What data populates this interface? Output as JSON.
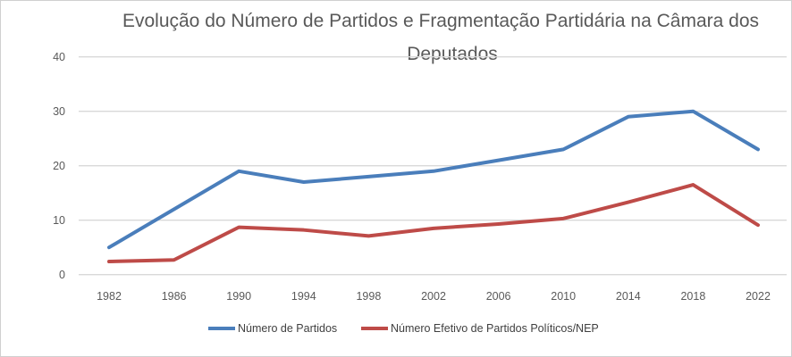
{
  "chart_data": {
    "type": "line",
    "title_lines": [
      "Evolução do Número de Partidos e Fragmentação Partidária na Câmara dos",
      "Deputados"
    ],
    "categories": [
      "1982",
      "1986",
      "1990",
      "1994",
      "1998",
      "2002",
      "2006",
      "2010",
      "2014",
      "2018",
      "2022"
    ],
    "series": [
      {
        "name": "Número de Partidos",
        "color": "#4a7ebb",
        "values": [
          5,
          12,
          19,
          17,
          18,
          19,
          21,
          23,
          29,
          30,
          23
        ]
      },
      {
        "name": "Número Efetivo de Partidos Políticos/NEP",
        "color": "#be4b48",
        "values": [
          2.4,
          2.7,
          8.7,
          8.2,
          7.1,
          8.5,
          9.3,
          10.3,
          13.3,
          16.5,
          9.1
        ]
      }
    ],
    "ylim": [
      0,
      40
    ],
    "yticks": [
      "0",
      "10",
      "20",
      "30",
      "40"
    ],
    "grid": true,
    "legend": "bottom",
    "xlabel": "",
    "ylabel": ""
  }
}
